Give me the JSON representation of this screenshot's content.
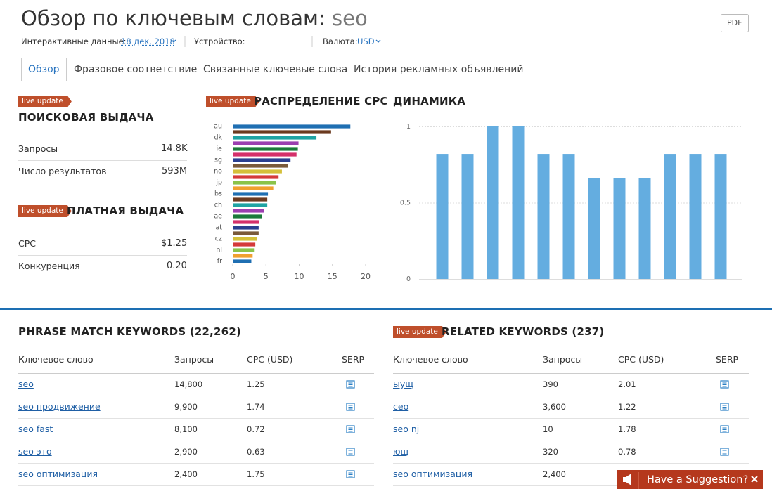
{
  "header": {
    "title": "Обзор по ключевым словам:",
    "keyword": "seo",
    "pdf": "PDF"
  },
  "filters": {
    "date_label": "Интерактивные данные:",
    "date": "18 дек. 2018",
    "device_label": "Устройство:",
    "currency_label": "Валюта:",
    "currency": "USD"
  },
  "tabs": [
    "Обзор",
    "Фразовое соответствие",
    "Связанные ключевые слова",
    "История рекламных объявлений"
  ],
  "organic": {
    "badge": "live update",
    "title": "ПОИСКОВАЯ ВЫДАЧА",
    "rows": [
      [
        "Запросы",
        "14.8K"
      ],
      [
        "Число результатов",
        "593M"
      ]
    ]
  },
  "paid": {
    "badge": "live update",
    "title": "ПЛАТНАЯ ВЫДАЧА",
    "rows": [
      [
        "CPC",
        "$1.25"
      ],
      [
        "Конкуренция",
        "0.20"
      ]
    ]
  },
  "chart_data": [
    {
      "type": "hbar",
      "badge": "live update",
      "title": "РАСПРЕДЕЛЕНИЕ CPC",
      "categories": [
        "au",
        null,
        "dk",
        null,
        "ie",
        null,
        "sg",
        null,
        "no",
        null,
        "jp",
        null,
        "bs",
        null,
        "ch",
        null,
        "ae",
        null,
        "at",
        null,
        "cz",
        null,
        "nl",
        null,
        "fr"
      ],
      "values": [
        17.7,
        14.8,
        12.6,
        9.9,
        9.8,
        9.6,
        8.7,
        8.3,
        7.4,
        6.9,
        6.5,
        6.1,
        5.3,
        5.2,
        5.2,
        4.7,
        4.4,
        4.0,
        3.9,
        3.9,
        3.7,
        3.4,
        3.2,
        3.0,
        2.8
      ],
      "colors": [
        "#1f6fb2",
        "#6b3a1f",
        "#1fa3a3",
        "#9b3fb0",
        "#1a7a3a",
        "#d4306a",
        "#2a3f8f",
        "#7a5a3a",
        "#d4c03a",
        "#d43a3a",
        "#8bc34a",
        "#f0a030"
      ],
      "xlim": [
        0,
        20
      ],
      "xticks": [
        0,
        5,
        10,
        15,
        20
      ]
    },
    {
      "type": "bar",
      "title": "ДИНАМИКА",
      "values": [
        0.82,
        0.82,
        1,
        1,
        0.82,
        0.82,
        0.66,
        0.66,
        0.66,
        0.82,
        0.82,
        0.82
      ],
      "color": "#64ade0",
      "ylim": [
        0,
        1
      ],
      "yticks": [
        0,
        0.5,
        1
      ],
      "grid": true
    }
  ],
  "phrase_match": {
    "title": "PHRASE MATCH KEYWORDS (22,262)",
    "headers": [
      "Ключевое слово",
      "Запросы",
      "CPC (USD)",
      "SERP"
    ],
    "rows": [
      [
        "seo",
        "14,800",
        "1.25"
      ],
      [
        "seo продвижение",
        "9,900",
        "1.74"
      ],
      [
        "seo fast",
        "8,100",
        "0.72"
      ],
      [
        "seo это",
        "2,900",
        "0.63"
      ],
      [
        "seo оптимизация",
        "2,400",
        "1.75"
      ]
    ]
  },
  "related": {
    "badge": "live update",
    "title": "RELATED KEYWORDS (237)",
    "headers": [
      "Ключевое слово",
      "Запросы",
      "CPC (USD)",
      "SERP"
    ],
    "rows": [
      [
        "ыущ",
        "390",
        "2.01"
      ],
      [
        "сео",
        "3,600",
        "1.22"
      ],
      [
        "seo nj",
        "10",
        "1.78"
      ],
      [
        "ющ",
        "320",
        "0.78"
      ],
      [
        "seo оптимизация",
        "2,400"
      ]
    ]
  },
  "suggestion": "Have a Suggestion?"
}
